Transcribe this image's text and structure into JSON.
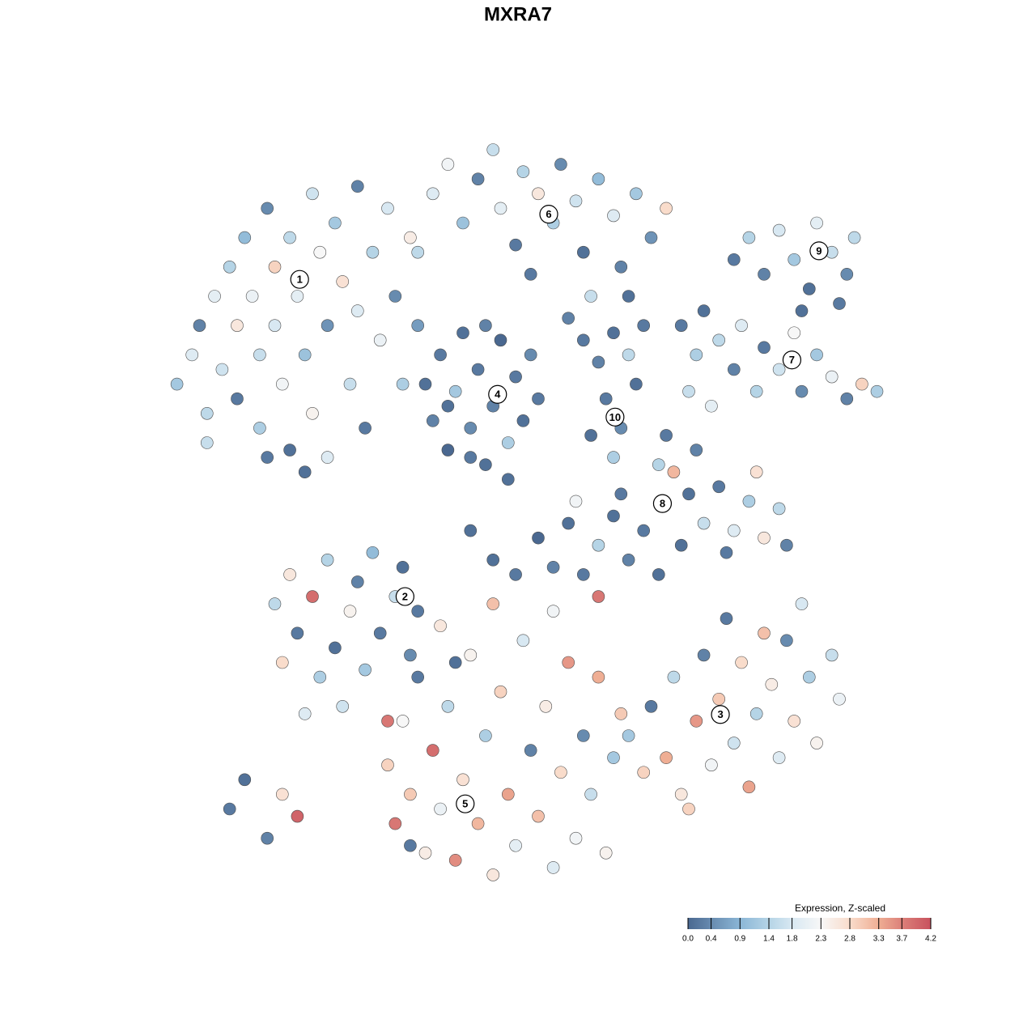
{
  "chart_data": {
    "type": "scatter",
    "title": "MXRA7",
    "xlim": [
      -50,
      50
    ],
    "ylim": [
      -50,
      50
    ],
    "x": [
      -48,
      -46,
      -45,
      -44,
      -43,
      -42,
      -41,
      -40,
      -40,
      -39,
      -38,
      -37,
      -37,
      -36,
      -35,
      -35,
      -34,
      -33,
      -33,
      -32,
      -31,
      -30,
      -30,
      -29,
      -28,
      -28,
      -27,
      -26,
      -25,
      -24,
      -24,
      -23,
      -22,
      -21,
      -20,
      -19,
      -18,
      -17,
      -16,
      -31,
      -36,
      -44,
      -14,
      -12,
      -10,
      -8,
      -6,
      -5,
      -3,
      -2,
      0,
      2,
      3,
      5,
      6,
      8,
      10,
      11,
      13,
      15,
      17,
      -16,
      -1,
      7,
      4,
      12,
      -15,
      -14,
      -13,
      -12,
      -11,
      -10,
      -9,
      -8,
      -7,
      -6,
      -5,
      -4,
      -3,
      -2,
      -1,
      0,
      -12,
      -7,
      -9,
      -4,
      6,
      8,
      10,
      12,
      9,
      11,
      13,
      10,
      7,
      14,
      26,
      28,
      30,
      32,
      34,
      36,
      37,
      39,
      41,
      42,
      40,
      35,
      19,
      21,
      22,
      24,
      26,
      27,
      29,
      30,
      32,
      34,
      35,
      37,
      39,
      41,
      43,
      45,
      20,
      23,
      17,
      18,
      21,
      16,
      20,
      22,
      24,
      26,
      28,
      30,
      32,
      33,
      25,
      29,
      19,
      -6,
      -3,
      0,
      2,
      4,
      6,
      8,
      10,
      12,
      14,
      16,
      11,
      5,
      -9,
      -35,
      -33,
      -32,
      -30,
      -29,
      -28,
      -27,
      -26,
      -25,
      -24,
      -23,
      -22,
      -21,
      -20,
      -19,
      -18,
      -17,
      -16,
      -34,
      -31,
      -41,
      -39,
      -36,
      -34,
      -32,
      12,
      14,
      15,
      17,
      18,
      19,
      21,
      22,
      23,
      24,
      26,
      27,
      28,
      29,
      31,
      32,
      33,
      34,
      36,
      37,
      39,
      40,
      25,
      30,
      35,
      20,
      -20,
      -19,
      -18,
      -17,
      -16,
      -15,
      -14,
      -13,
      -12,
      -11,
      -10,
      -9,
      -8,
      -7,
      -6,
      -5,
      -4,
      -3,
      -2,
      -1,
      0,
      1,
      2,
      3,
      4,
      5,
      6,
      7,
      8,
      9,
      10,
      11,
      -13,
      -6,
      2,
      8,
      -17,
      -11
    ],
    "y": [
      18,
      22,
      26,
      14,
      30,
      20,
      34,
      26,
      16,
      38,
      30,
      22,
      12,
      42,
      34,
      26,
      18,
      9,
      38,
      30,
      22,
      14,
      44,
      36,
      26,
      8,
      40,
      32,
      18,
      45,
      28,
      12,
      36,
      24,
      42,
      30,
      18,
      38,
      26,
      6,
      8,
      10,
      44,
      48,
      40,
      46,
      50,
      42,
      37,
      47,
      44,
      40,
      48,
      43,
      36,
      46,
      41,
      34,
      44,
      38,
      42,
      36,
      33,
      30,
      27,
      30,
      18,
      13,
      22,
      9,
      17,
      25,
      12,
      20,
      7,
      15,
      24,
      10,
      19,
      13,
      22,
      16,
      15,
      26,
      8,
      5,
      24,
      21,
      25,
      22,
      16,
      12,
      18,
      8,
      11,
      26,
      35,
      38,
      33,
      39,
      35,
      31,
      40,
      36,
      33,
      38,
      29,
      28,
      26,
      22,
      28,
      24,
      20,
      26,
      17,
      23,
      20,
      25,
      17,
      22,
      19,
      16,
      18,
      17,
      17,
      15,
      11,
      6,
      9,
      7,
      3,
      -1,
      4,
      -2,
      2,
      -3,
      1,
      -4,
      -5,
      6,
      -4,
      -6,
      -8,
      -3,
      -7,
      -1,
      -8,
      -4,
      0,
      -6,
      -2,
      -8,
      3,
      2,
      -2,
      -12,
      -8,
      -16,
      -11,
      -22,
      -6,
      -18,
      -26,
      -13,
      -9,
      -21,
      -5,
      -16,
      -28,
      -11,
      -7,
      -19,
      -13,
      -20,
      -27,
      -40,
      -36,
      -44,
      -38,
      -41,
      -30,
      -35,
      -26,
      -33,
      -22,
      -38,
      -28,
      -19,
      -34,
      -25,
      -31,
      -20,
      -37,
      -27,
      -23,
      -33,
      -17,
      -28,
      -22,
      -31,
      -19,
      -25,
      -14,
      -16,
      -12,
      -40,
      -34,
      -42,
      -28,
      -38,
      -22,
      -46,
      -32,
      -40,
      -26,
      -47,
      -36,
      -19,
      -42,
      -30,
      -49,
      -24,
      -38,
      -45,
      -17,
      -32,
      -41,
      -26,
      -48,
      -35,
      -20,
      -44,
      -30,
      -38,
      -22,
      -46,
      -33,
      -27,
      -15,
      -12,
      -13,
      -11,
      -45,
      -20
    ],
    "values": [
      1.2,
      1.9,
      0.3,
      1.5,
      2.0,
      1.7,
      1.4,
      2.6,
      0.2,
      1.0,
      2.1,
      1.6,
      1.3,
      0.4,
      2.9,
      1.8,
      2.2,
      0.1,
      1.5,
      2.0,
      1.1,
      2.4,
      1.7,
      2.3,
      0.5,
      1.9,
      1.2,
      2.7,
      1.6,
      0.3,
      1.9,
      0.2,
      1.4,
      2.1,
      1.8,
      0.4,
      1.3,
      2.5,
      0.6,
      0.1,
      0.2,
      1.6,
      1.9,
      2.2,
      1.1,
      0.3,
      1.6,
      2.0,
      0.2,
      1.4,
      2.6,
      1.3,
      0.4,
      1.7,
      0.1,
      1.0,
      1.9,
      0.3,
      1.2,
      0.5,
      2.8,
      1.5,
      0.2,
      1.6,
      0.3,
      0.1,
      0.1,
      0.3,
      0.2,
      0.0,
      1.2,
      0.1,
      0.4,
      0.2,
      0.1,
      0.3,
      0.0,
      1.3,
      0.2,
      0.1,
      0.4,
      0.2,
      0.1,
      0.3,
      0.2,
      0.1,
      0.2,
      0.3,
      0.1,
      1.5,
      0.2,
      0.4,
      0.1,
      1.3,
      0.1,
      0.2,
      0.2,
      1.4,
      0.3,
      1.8,
      1.2,
      0.1,
      2.0,
      1.6,
      0.4,
      1.5,
      0.2,
      0.1,
      0.2,
      1.3,
      0.1,
      1.5,
      0.3,
      1.9,
      1.4,
      0.2,
      1.7,
      2.3,
      0.4,
      1.2,
      2.1,
      0.3,
      2.9,
      1.3,
      1.6,
      2.0,
      0.2,
      3.2,
      0.3,
      1.4,
      0.1,
      1.6,
      0.2,
      1.9,
      1.3,
      2.6,
      1.5,
      0.3,
      0.2,
      2.7,
      0.1,
      0.1,
      0.2,
      0.0,
      0.3,
      0.1,
      0.2,
      1.4,
      0.1,
      0.3,
      0.2,
      0.1,
      0.2,
      2.2,
      0.1,
      1.5,
      2.6,
      0.2,
      3.9,
      1.3,
      1.4,
      0.1,
      1.7,
      2.4,
      0.3,
      1.2,
      1.0,
      0.2,
      3.8,
      1.6,
      0.1,
      0.4,
      0.2,
      2.8,
      1.9,
      0.2,
      0.1,
      0.3,
      2.7,
      4.0,
      1.2,
      2.9,
      0.2,
      3.3,
      1.5,
      2.6,
      3.5,
      0.3,
      2.2,
      3.0,
      1.7,
      2.8,
      3.4,
      1.4,
      2.5,
      1.9,
      0.4,
      2.7,
      1.3,
      2.4,
      1.6,
      2.1,
      0.2,
      3.1,
      1.8,
      2.9,
      2.9,
      3.8,
      2.3,
      3.0,
      0.2,
      2.5,
      3.9,
      2.1,
      1.5,
      3.6,
      2.7,
      2.4,
      3.2,
      1.3,
      2.6,
      2.9,
      3.4,
      2.0,
      1.8,
      0.3,
      3.1,
      2.5,
      1.9,
      2.8,
      3.5,
      2.2,
      0.4,
      1.6,
      3.3,
      2.4,
      1.2,
      3.0,
      2.6,
      3.1,
      2.2,
      3.8,
      0.2,
      0.1
    ],
    "annotations": [
      {
        "text": "1",
        "x": -31.7,
        "y": 32.3
      },
      {
        "text": "2",
        "x": -17.7,
        "y": -11
      },
      {
        "text": "3",
        "x": 24.2,
        "y": -27.1
      },
      {
        "text": "4",
        "x": -5.4,
        "y": 16.6
      },
      {
        "text": "5",
        "x": -9.7,
        "y": -39.3
      },
      {
        "text": "6",
        "x": 1.4,
        "y": 41.2
      },
      {
        "text": "7",
        "x": 33.7,
        "y": 21.3
      },
      {
        "text": "8",
        "x": 16.5,
        "y": 1.7
      },
      {
        "text": "9",
        "x": 37.3,
        "y": 36.2
      },
      {
        "text": "10",
        "x": 10.2,
        "y": 13.5
      }
    ],
    "colorbar": {
      "title": "Expression, Z-scaled",
      "lim": [
        0,
        4.2
      ],
      "ticks": [
        {
          "value": 0,
          "label": "0.0"
        },
        0.4,
        0.9,
        1.4,
        1.8,
        2.3,
        2.8,
        3.3,
        3.7,
        4.2
      ]
    },
    "colorscale": [
      {
        "value": 0,
        "color": "#4a6890"
      },
      {
        "value": 0.9,
        "color": "#8bb6d6"
      },
      {
        "value": 1.4,
        "color": "#b5d4e6"
      },
      {
        "value": 1.8,
        "color": "#d8e8f2"
      },
      {
        "value": 2.3,
        "color": "#f7f7f7"
      },
      {
        "value": 2.8,
        "color": "#f9dccb"
      },
      {
        "value": 3.3,
        "color": "#efae94"
      },
      {
        "value": 3.7,
        "color": "#dc8079"
      },
      {
        "value": 4.2,
        "color": "#c8525e"
      }
    ]
  }
}
